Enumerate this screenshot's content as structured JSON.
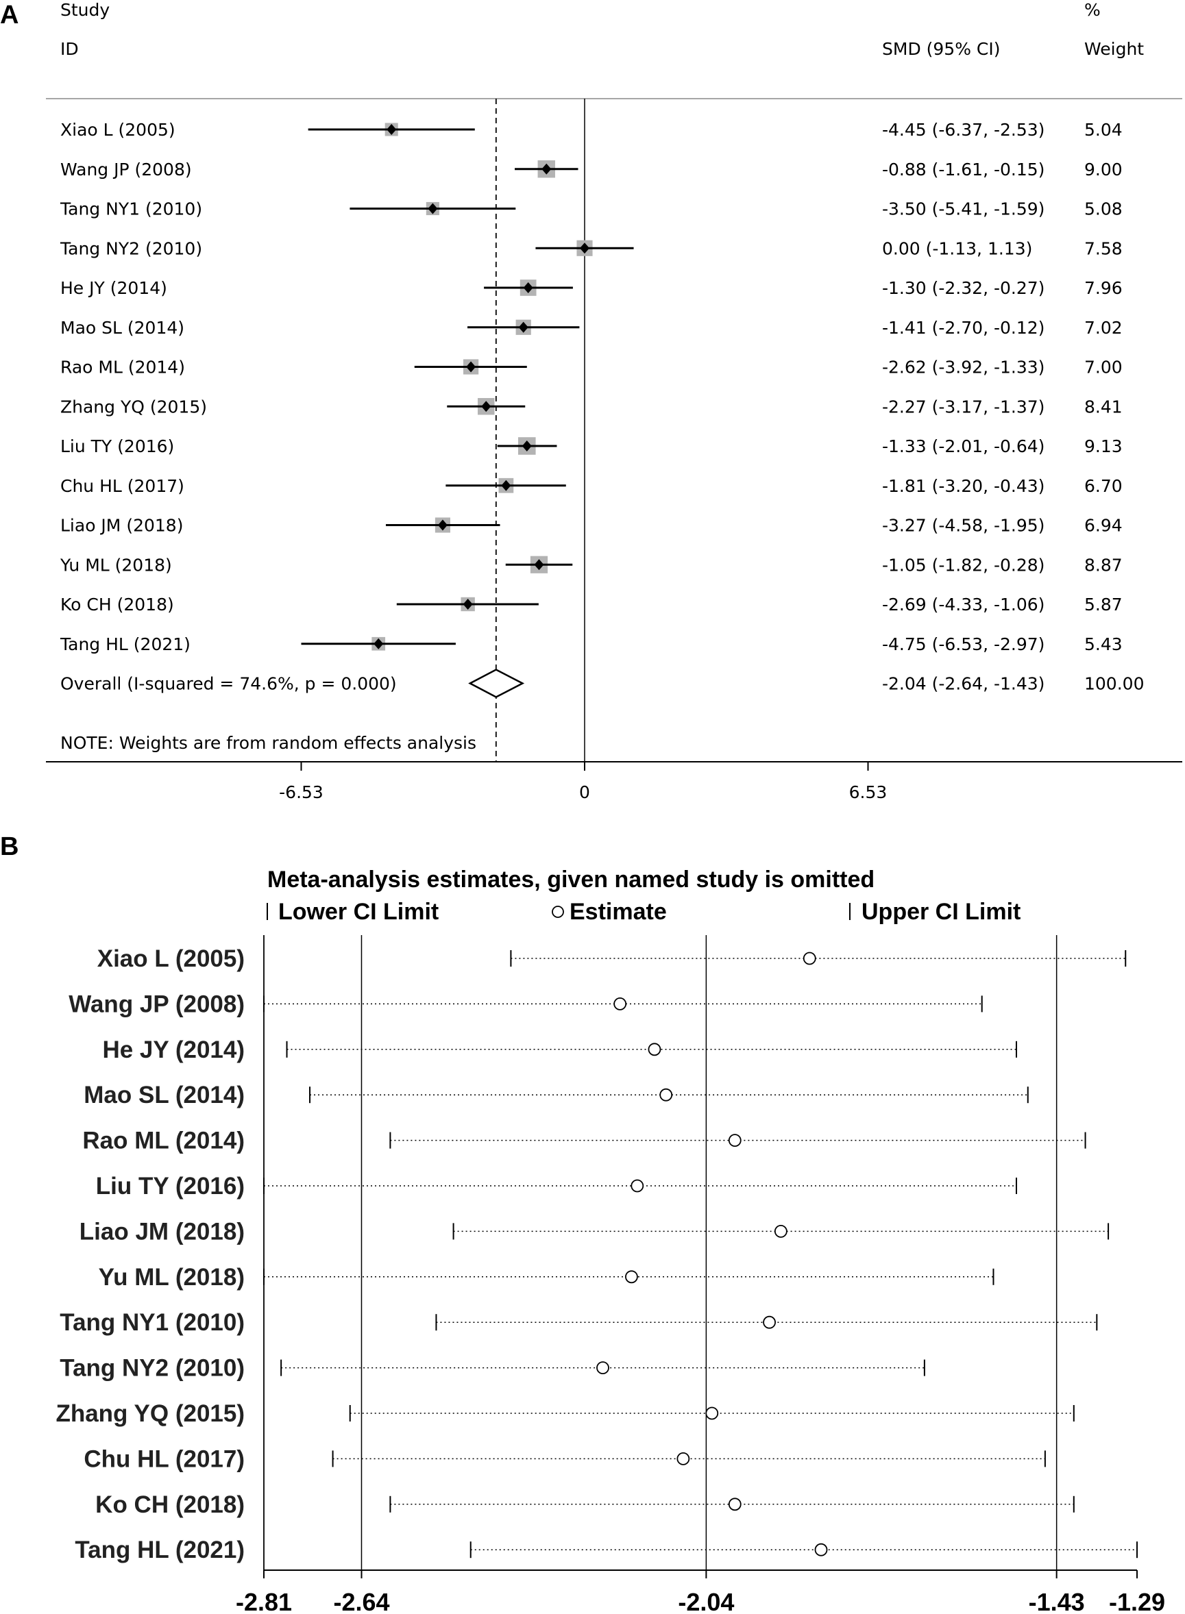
{
  "chart_data": [
    {
      "panel": "A",
      "type": "forest",
      "header": {
        "study_top": "Study",
        "study_bottom": "ID",
        "effect": "SMD (95% CI)",
        "weight_top": "%",
        "weight_bottom": "Weight"
      },
      "studies": [
        {
          "label": "Xiao L (2005)",
          "smd": -4.45,
          "lo": -6.37,
          "hi": -2.53,
          "weight": 5.04,
          "ci_text": "-4.45 (-6.37, -2.53)",
          "weight_text": "5.04"
        },
        {
          "label": "Wang JP (2008)",
          "smd": -0.88,
          "lo": -1.61,
          "hi": -0.15,
          "weight": 9.0,
          "ci_text": "-0.88 (-1.61, -0.15)",
          "weight_text": "9.00"
        },
        {
          "label": "Tang NY1 (2010)",
          "smd": -3.5,
          "lo": -5.41,
          "hi": -1.59,
          "weight": 5.08,
          "ci_text": "-3.50 (-5.41, -1.59)",
          "weight_text": "5.08"
        },
        {
          "label": "Tang NY2 (2010)",
          "smd": 0.0,
          "lo": -1.13,
          "hi": 1.13,
          "weight": 7.58,
          "ci_text": "0.00 (-1.13, 1.13)",
          "weight_text": "7.58"
        },
        {
          "label": "He JY (2014)",
          "smd": -1.3,
          "lo": -2.32,
          "hi": -0.27,
          "weight": 7.96,
          "ci_text": "-1.30 (-2.32, -0.27)",
          "weight_text": "7.96"
        },
        {
          "label": "Mao SL (2014)",
          "smd": -1.41,
          "lo": -2.7,
          "hi": -0.12,
          "weight": 7.02,
          "ci_text": "-1.41 (-2.70, -0.12)",
          "weight_text": "7.02"
        },
        {
          "label": "Rao ML (2014)",
          "smd": -2.62,
          "lo": -3.92,
          "hi": -1.33,
          "weight": 7.0,
          "ci_text": "-2.62 (-3.92, -1.33)",
          "weight_text": "7.00"
        },
        {
          "label": "Zhang YQ (2015)",
          "smd": -2.27,
          "lo": -3.17,
          "hi": -1.37,
          "weight": 8.41,
          "ci_text": "-2.27 (-3.17, -1.37)",
          "weight_text": "8.41"
        },
        {
          "label": "Liu TY (2016)",
          "smd": -1.33,
          "lo": -2.01,
          "hi": -0.64,
          "weight": 9.13,
          "ci_text": "-1.33 (-2.01, -0.64)",
          "weight_text": "9.13"
        },
        {
          "label": "Chu HL (2017)",
          "smd": -1.81,
          "lo": -3.2,
          "hi": -0.43,
          "weight": 6.7,
          "ci_text": "-1.81 (-3.20, -0.43)",
          "weight_text": "6.70"
        },
        {
          "label": "Liao JM (2018)",
          "smd": -3.27,
          "lo": -4.58,
          "hi": -1.95,
          "weight": 6.94,
          "ci_text": "-3.27 (-4.58, -1.95)",
          "weight_text": "6.94"
        },
        {
          "label": "Yu ML (2018)",
          "smd": -1.05,
          "lo": -1.82,
          "hi": -0.28,
          "weight": 8.87,
          "ci_text": "-1.05 (-1.82, -0.28)",
          "weight_text": "8.87"
        },
        {
          "label": "Ko CH (2018)",
          "smd": -2.69,
          "lo": -4.33,
          "hi": -1.06,
          "weight": 5.87,
          "ci_text": "-2.69 (-4.33, -1.06)",
          "weight_text": "5.87"
        },
        {
          "label": "Tang HL (2021)",
          "smd": -4.75,
          "lo": -6.53,
          "hi": -2.97,
          "weight": 5.43,
          "ci_text": "-4.75 (-6.53, -2.97)",
          "weight_text": "5.43"
        }
      ],
      "overall": {
        "label": "Overall  (I-squared = 74.6%, p = 0.000)",
        "smd": -2.04,
        "lo": -2.64,
        "hi": -1.43,
        "ci_text": "-2.04 (-2.64, -1.43)",
        "weight_text": "100.00"
      },
      "note": "NOTE: Weights are from random effects analysis",
      "xticks": [
        -6.53,
        0,
        6.53
      ],
      "xtick_labels": [
        "-6.53",
        "0",
        "6.53"
      ],
      "xlim": [
        -12.4,
        13.6
      ],
      "null_line": 0,
      "overall_line": -2.04
    },
    {
      "panel": "B",
      "type": "influence",
      "title": "Meta-analysis estimates, given named study is omitted",
      "legend": {
        "lower": "Lower CI Limit",
        "estimate": "Estimate",
        "upper": "Upper CI Limit"
      },
      "studies": [
        {
          "label": "Xiao L (2005)",
          "lo": -2.38,
          "est": -1.86,
          "hi": -1.31
        },
        {
          "label": "Wang JP (2008)",
          "lo": -2.81,
          "est": -2.19,
          "hi": -1.56
        },
        {
          "label": "He JY (2014)",
          "lo": -2.77,
          "est": -2.13,
          "hi": -1.5
        },
        {
          "label": "Mao SL (2014)",
          "lo": -2.73,
          "est": -2.11,
          "hi": -1.48
        },
        {
          "label": "Rao ML (2014)",
          "lo": -2.59,
          "est": -1.99,
          "hi": -1.38
        },
        {
          "label": "Liu TY (2016)",
          "lo": -2.81,
          "est": -2.16,
          "hi": -1.5
        },
        {
          "label": "Liao JM (2018)",
          "lo": -2.48,
          "est": -1.91,
          "hi": -1.34
        },
        {
          "label": "Yu ML (2018)",
          "lo": -2.81,
          "est": -2.17,
          "hi": -1.54
        },
        {
          "label": "Tang NY1 (2010)",
          "lo": -2.51,
          "est": -1.93,
          "hi": -1.36
        },
        {
          "label": "Tang NY2 (2010)",
          "lo": -2.78,
          "est": -2.22,
          "hi": -1.66
        },
        {
          "label": "Zhang YQ (2015)",
          "lo": -2.66,
          "est": -2.03,
          "hi": -1.4
        },
        {
          "label": "Chu HL (2017)",
          "lo": -2.69,
          "est": -2.08,
          "hi": -1.45
        },
        {
          "label": "Ko CH (2018)",
          "lo": -2.59,
          "est": -1.99,
          "hi": -1.4
        },
        {
          "label": "Tang HL (2021)",
          "lo": -2.45,
          "est": -1.84,
          "hi": -1.29
        }
      ],
      "xticks": [
        -2.81,
        -2.64,
        -2.04,
        -1.43,
        -1.29
      ],
      "xtick_labels": [
        "-2.81",
        "-2.64",
        "-2.04",
        "-1.43",
        "-1.29"
      ],
      "ref_lines": [
        -2.64,
        -2.04,
        -1.43
      ],
      "xlim": [
        -2.81,
        -1.29
      ]
    }
  ],
  "panels": {
    "a": "A",
    "b": "B"
  }
}
